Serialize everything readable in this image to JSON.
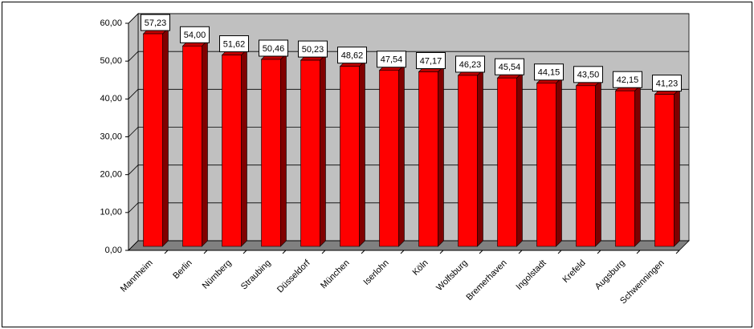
{
  "chart_data": {
    "type": "bar3d",
    "categories": [
      "Mannheim",
      "Berlin",
      "Nürnberg",
      "Straubing",
      "Düsseldorf",
      "München",
      "Iserlohn",
      "Köln",
      "Wolfsburg",
      "Bremerhaven",
      "Ingolstadt",
      "Krefeld",
      "Augsburg",
      "Schwenningen"
    ],
    "values": [
      57.23,
      54.0,
      51.62,
      50.46,
      50.23,
      48.62,
      47.54,
      47.17,
      46.23,
      45.54,
      44.15,
      43.5,
      42.15,
      41.23
    ],
    "value_labels": [
      "57,23",
      "54,00",
      "51,62",
      "50,46",
      "50,23",
      "48,62",
      "47,54",
      "47,17",
      "46,23",
      "45,54",
      "44,15",
      "43,50",
      "42,15",
      "41,23"
    ],
    "color": "#ff0000",
    "ylim": [
      0,
      60
    ],
    "yticks": [
      {
        "value": 0,
        "label": "0,00"
      },
      {
        "value": 10,
        "label": "10,00"
      },
      {
        "value": 20,
        "label": "20,00"
      },
      {
        "value": 30,
        "label": "30,00"
      },
      {
        "value": 40,
        "label": "40,00"
      },
      {
        "value": 50,
        "label": "50,00"
      },
      {
        "value": 60,
        "label": "60,00"
      }
    ],
    "grid": true
  }
}
